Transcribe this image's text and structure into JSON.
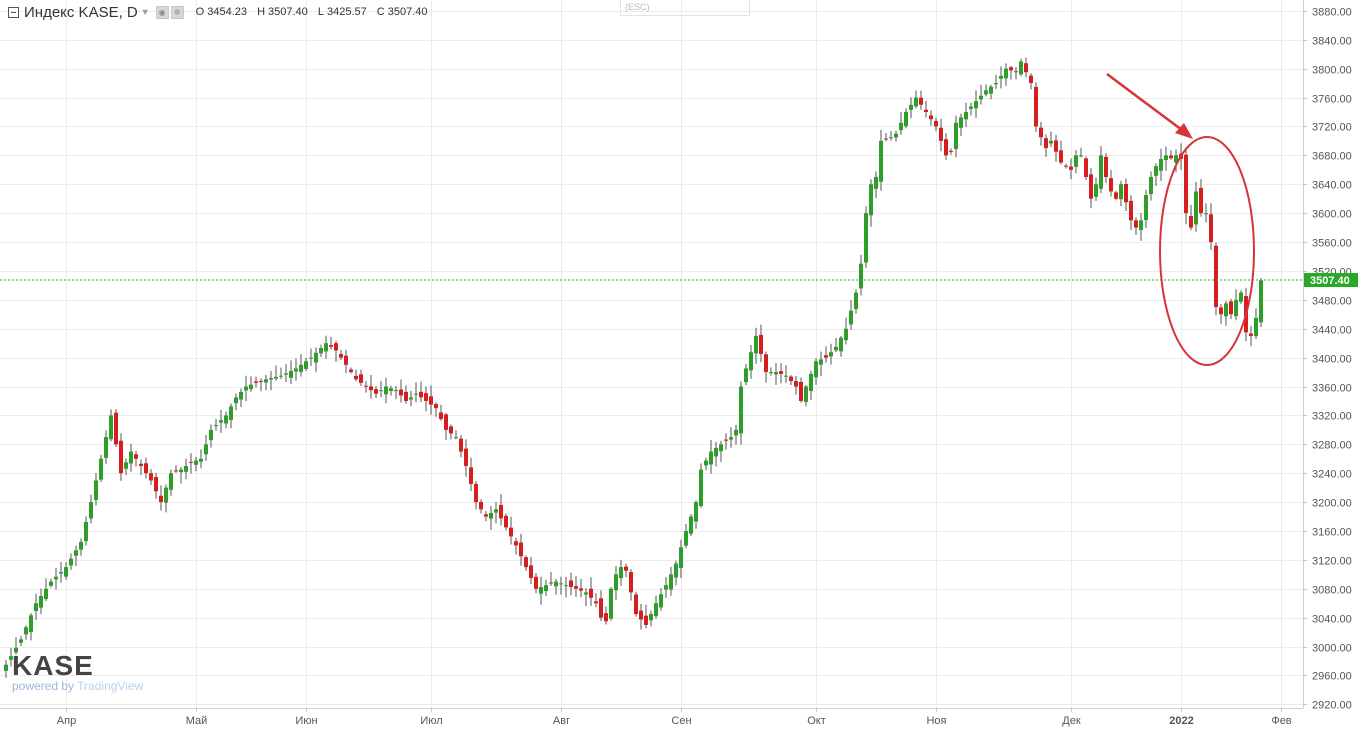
{
  "header": {
    "symbol": "Индекс KASE, D",
    "ohlc": [
      {
        "k": "O",
        "v": "3454.23"
      },
      {
        "k": "H",
        "v": "3507.40"
      },
      {
        "k": "L",
        "v": "3425.57"
      },
      {
        "k": "C",
        "v": "3507.40"
      }
    ],
    "esc_hint": "(ESC)"
  },
  "logo": {
    "brand": "KASE",
    "powered": "powered by",
    "vendor": "TradingView"
  },
  "colors": {
    "up": "#2e9e2a",
    "down": "#d71e1e",
    "wick": "#555555",
    "price_line": "#27a827",
    "annotation": "#d8333a",
    "grid": "#ececec"
  },
  "chart_data": {
    "type": "candlestick",
    "title": "Индекс KASE, D",
    "ylim": [
      2915,
      3895
    ],
    "y_ticks": [
      2920,
      2960,
      3000,
      3040,
      3080,
      3120,
      3160,
      3200,
      3240,
      3280,
      3320,
      3360,
      3400,
      3440,
      3480,
      3520,
      3560,
      3600,
      3640,
      3680,
      3720,
      3760,
      3800,
      3840,
      3880
    ],
    "x_ticks": [
      {
        "label": "Апр",
        "i": 12
      },
      {
        "label": "Май",
        "i": 38
      },
      {
        "label": "Июн",
        "i": 60
      },
      {
        "label": "Июл",
        "i": 85
      },
      {
        "label": "Авг",
        "i": 111
      },
      {
        "label": "Сен",
        "i": 135
      },
      {
        "label": "Окт",
        "i": 162
      },
      {
        "label": "Ноя",
        "i": 186
      },
      {
        "label": "Дек",
        "i": 213
      },
      {
        "label": "2022",
        "i": 235,
        "bold": true
      },
      {
        "label": "Фев",
        "i": 255
      }
    ],
    "current_price": "3507.40",
    "close_points": [
      [
        0,
        2975
      ],
      [
        3,
        3010
      ],
      [
        6,
        3060
      ],
      [
        9,
        3090
      ],
      [
        12,
        3110
      ],
      [
        15,
        3145
      ],
      [
        17,
        3200
      ],
      [
        19,
        3260
      ],
      [
        21,
        3320
      ],
      [
        23,
        3240
      ],
      [
        25,
        3270
      ],
      [
        27,
        3250
      ],
      [
        29,
        3230
      ],
      [
        31,
        3200
      ],
      [
        33,
        3240
      ],
      [
        35,
        3245
      ],
      [
        37,
        3255
      ],
      [
        39,
        3260
      ],
      [
        41,
        3300
      ],
      [
        44,
        3320
      ],
      [
        46,
        3345
      ],
      [
        48,
        3360
      ],
      [
        50,
        3365
      ],
      [
        52,
        3370
      ],
      [
        55,
        3375
      ],
      [
        58,
        3385
      ],
      [
        61,
        3400
      ],
      [
        64,
        3420
      ],
      [
        66,
        3410
      ],
      [
        68,
        3390
      ],
      [
        70,
        3370
      ],
      [
        72,
        3360
      ],
      [
        74,
        3350
      ],
      [
        76,
        3360
      ],
      [
        78,
        3355
      ],
      [
        80,
        3340
      ],
      [
        82,
        3350
      ],
      [
        84,
        3340
      ],
      [
        86,
        3330
      ],
      [
        88,
        3300
      ],
      [
        90,
        3290
      ],
      [
        92,
        3250
      ],
      [
        94,
        3200
      ],
      [
        96,
        3180
      ],
      [
        98,
        3190
      ],
      [
        100,
        3165
      ],
      [
        102,
        3140
      ],
      [
        104,
        3110
      ],
      [
        106,
        3080
      ],
      [
        108,
        3085
      ],
      [
        110,
        3090
      ],
      [
        112,
        3085
      ],
      [
        114,
        3080
      ],
      [
        116,
        3075
      ],
      [
        118,
        3060
      ],
      [
        119,
        3040
      ],
      [
        120,
        3035
      ],
      [
        121,
        3080
      ],
      [
        122,
        3100
      ],
      [
        123,
        3110
      ],
      [
        124,
        3105
      ],
      [
        126,
        3045
      ],
      [
        128,
        3030
      ],
      [
        130,
        3060
      ],
      [
        132,
        3085
      ],
      [
        134,
        3115
      ],
      [
        136,
        3160
      ],
      [
        138,
        3200
      ],
      [
        139,
        3245
      ],
      [
        141,
        3270
      ],
      [
        143,
        3280
      ],
      [
        145,
        3290
      ],
      [
        146,
        3300
      ],
      [
        147,
        3360
      ],
      [
        148,
        3385
      ],
      [
        150,
        3430
      ],
      [
        152,
        3380
      ],
      [
        154,
        3380
      ],
      [
        156,
        3375
      ],
      [
        158,
        3360
      ],
      [
        159,
        3340
      ],
      [
        160,
        3360
      ],
      [
        162,
        3395
      ],
      [
        164,
        3400
      ],
      [
        166,
        3415
      ],
      [
        168,
        3440
      ],
      [
        170,
        3490
      ],
      [
        171,
        3530
      ],
      [
        172,
        3600
      ],
      [
        173,
        3640
      ],
      [
        174,
        3650
      ],
      [
        175,
        3700
      ],
      [
        177,
        3705
      ],
      [
        178,
        3710
      ],
      [
        180,
        3740
      ],
      [
        182,
        3760
      ],
      [
        184,
        3740
      ],
      [
        186,
        3720
      ],
      [
        187,
        3700
      ],
      [
        188,
        3680
      ],
      [
        189,
        3685
      ],
      [
        190,
        3725
      ],
      [
        192,
        3740
      ],
      [
        194,
        3755
      ],
      [
        196,
        3770
      ],
      [
        198,
        3780
      ],
      [
        200,
        3800
      ],
      [
        202,
        3795
      ],
      [
        203,
        3810
      ],
      [
        205,
        3780
      ],
      [
        206,
        3720
      ],
      [
        208,
        3690
      ],
      [
        209,
        3700
      ],
      [
        211,
        3670
      ],
      [
        213,
        3660
      ],
      [
        214,
        3680
      ],
      [
        215,
        3680
      ],
      [
        216,
        3650
      ],
      [
        217,
        3620
      ],
      [
        218,
        3640
      ],
      [
        219,
        3680
      ],
      [
        220,
        3650
      ],
      [
        221,
        3630
      ],
      [
        222,
        3620
      ],
      [
        223,
        3640
      ],
      [
        224,
        3615
      ],
      [
        225,
        3590
      ],
      [
        226,
        3580
      ],
      [
        227,
        3590
      ],
      [
        228,
        3625
      ],
      [
        229,
        3650
      ],
      [
        230,
        3665
      ],
      [
        231,
        3675
      ],
      [
        232,
        3680
      ],
      [
        233,
        3676
      ],
      [
        234,
        3680
      ],
      [
        235,
        3675
      ],
      [
        236,
        3600
      ],
      [
        237,
        3580
      ],
      [
        238,
        3630
      ],
      [
        239,
        3600
      ],
      [
        240,
        3600
      ],
      [
        241,
        3560
      ],
      [
        242,
        3470
      ],
      [
        243,
        3460
      ],
      [
        244,
        3475
      ],
      [
        245,
        3460
      ],
      [
        246,
        3480
      ],
      [
        247,
        3490
      ],
      [
        248,
        3435
      ],
      [
        249,
        3430
      ],
      [
        250,
        3455
      ],
      [
        251,
        3507
      ]
    ]
  }
}
